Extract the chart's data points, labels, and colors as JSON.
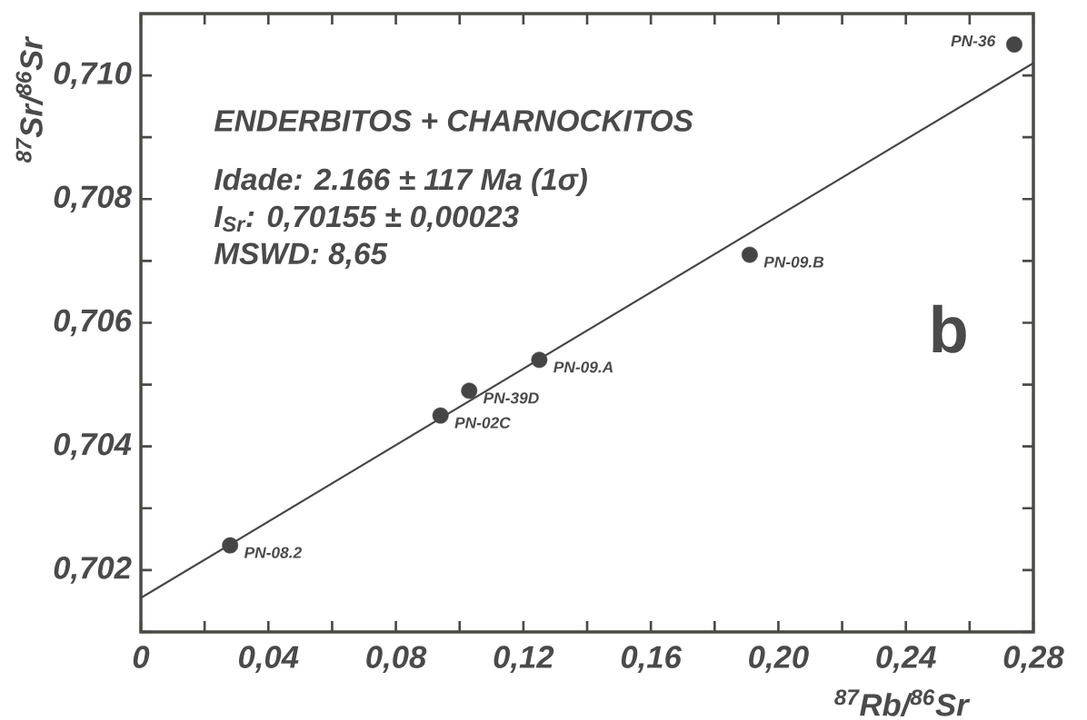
{
  "chart_data": {
    "type": "scatter",
    "title": "ENDERBITOS + CHARNOCKITOS",
    "xlabel": "$^{87}$Rb/$^{86}$Sr",
    "ylabel": "$^{87}$Sr/$^{86}$Sr",
    "xlim": [
      0,
      0.28
    ],
    "ylim": [
      0.701,
      0.711
    ],
    "xticks": [
      {
        "value": 0,
        "label": "0"
      },
      {
        "value": 0.02,
        "label": null
      },
      {
        "value": 0.04,
        "label": "0,04"
      },
      {
        "value": 0.06,
        "label": null
      },
      {
        "value": 0.08,
        "label": "0,08"
      },
      {
        "value": 0.1,
        "label": null
      },
      {
        "value": 0.12,
        "label": "0,12"
      },
      {
        "value": 0.14,
        "label": null
      },
      {
        "value": 0.16,
        "label": "0,16"
      },
      {
        "value": 0.18,
        "label": null
      },
      {
        "value": 0.2,
        "label": "0,20"
      },
      {
        "value": 0.22,
        "label": null
      },
      {
        "value": 0.24,
        "label": "0,24"
      },
      {
        "value": 0.26,
        "label": null
      },
      {
        "value": 0.28,
        "label": "0,28"
      }
    ],
    "yticks": [
      {
        "value": 0.701,
        "label": null
      },
      {
        "value": 0.702,
        "label": "0,702"
      },
      {
        "value": 0.703,
        "label": null
      },
      {
        "value": 0.704,
        "label": "0,704"
      },
      {
        "value": 0.705,
        "label": null
      },
      {
        "value": 0.706,
        "label": "0,706"
      },
      {
        "value": 0.707,
        "label": null
      },
      {
        "value": 0.708,
        "label": "0,708"
      },
      {
        "value": 0.709,
        "label": null
      },
      {
        "value": 0.71,
        "label": "0,710"
      }
    ],
    "series": [
      {
        "color": "#454545",
        "marker": "circle",
        "x": [
          0.028,
          0.094,
          0.103,
          0.125,
          0.191,
          0.274
        ],
        "values": [
          0.7024,
          0.7045,
          0.7049,
          0.7054,
          0.7071,
          0.7105
        ]
      },
      {
        "type": "line",
        "color": "#454545",
        "marker": "none",
        "line_style": "solid",
        "x": [
          0,
          0.28
        ],
        "values": [
          0.70155,
          0.7102
        ]
      }
    ],
    "annotations": [
      "Idade: 2.166 ± 117 Ma (1σ)",
      "I$_{Sr}$: 0,70155 ± 0,00023",
      "MSWD: 8,65",
      "b",
      {
        "text": "PN-08.2",
        "x": 0.028,
        "y": 0.7024
      },
      {
        "text": "PN-02C",
        "x": 0.094,
        "y": 0.7045
      },
      {
        "text": "PN-39D",
        "x": 0.103,
        "y": 0.7049
      },
      {
        "text": "PN-09.A",
        "x": 0.125,
        "y": 0.7054
      },
      {
        "text": "PN-09.B",
        "x": 0.191,
        "y": 0.7071
      },
      {
        "text": "PN-36",
        "x": 0.274,
        "y": 0.7105
      }
    ]
  }
}
